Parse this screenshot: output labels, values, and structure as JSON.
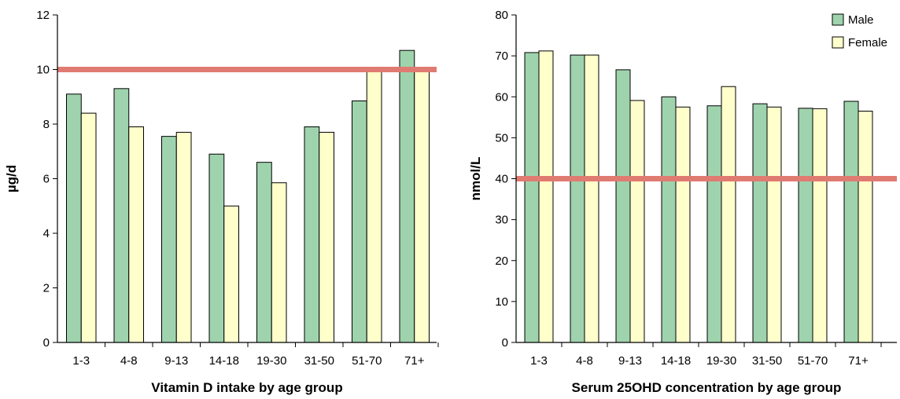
{
  "colors": {
    "male": "#9fd3ad",
    "female": "#ffffcc",
    "reference": "#e07b72",
    "stroke": "#000000"
  },
  "legend": {
    "male": "Male",
    "female": "Female",
    "placement": "top-right"
  },
  "chart_data": [
    {
      "type": "bar",
      "xlabel": "Vitamin D intake by age group",
      "ylabel": "µg/d",
      "ylim": [
        0,
        12
      ],
      "yticks": [
        0,
        2,
        4,
        6,
        8,
        10,
        12
      ],
      "categories": [
        "1-3",
        "4-8",
        "9-13",
        "14-18",
        "19-30",
        "31-50",
        "51-70",
        "71+"
      ],
      "series": [
        {
          "name": "Male",
          "values": [
            9.1,
            9.3,
            7.55,
            6.9,
            6.6,
            7.9,
            8.85,
            10.7
          ]
        },
        {
          "name": "Female",
          "values": [
            8.4,
            7.9,
            7.7,
            5.0,
            5.85,
            7.7,
            10.0,
            10.0
          ]
        }
      ],
      "reference_line": 10
    },
    {
      "type": "bar",
      "xlabel": "Serum 25OHD concentration by age group",
      "ylabel": "nmol/L",
      "ylim": [
        0,
        80
      ],
      "yticks": [
        0,
        10,
        20,
        30,
        40,
        50,
        60,
        70,
        80
      ],
      "categories": [
        "1-3",
        "4-8",
        "9-13",
        "14-18",
        "19-30",
        "31-50",
        "51-70",
        "71+"
      ],
      "series": [
        {
          "name": "Male",
          "values": [
            70.8,
            70.2,
            66.6,
            60.0,
            57.8,
            58.3,
            57.2,
            58.9
          ]
        },
        {
          "name": "Female",
          "values": [
            71.2,
            70.2,
            59.1,
            57.5,
            62.5,
            57.5,
            57.1,
            56.5
          ]
        }
      ],
      "reference_line": 40
    }
  ]
}
